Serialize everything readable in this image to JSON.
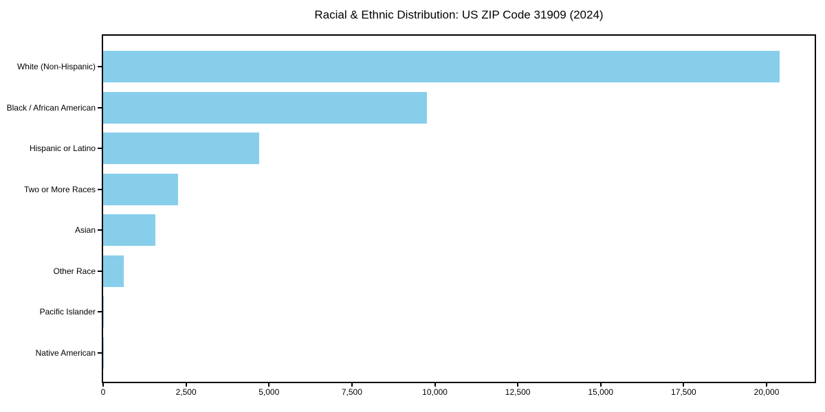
{
  "chart_data": {
    "type": "bar",
    "orientation": "horizontal",
    "title": "Racial & Ethnic Distribution: US ZIP Code 31909 (2024)",
    "categories": [
      "White (Non-Hispanic)",
      "Black / African American",
      "Hispanic or Latino",
      "Two or More Races",
      "Asian",
      "Other Race",
      "Pacific Islander",
      "Native American"
    ],
    "values": [
      20400,
      9770,
      4700,
      2250,
      1580,
      630,
      30,
      10
    ],
    "xlabel": "",
    "ylabel": "",
    "xlim": [
      0,
      21450
    ],
    "xticks": [
      0,
      2500,
      5000,
      7500,
      10000,
      12500,
      15000,
      17500,
      20000
    ],
    "xtick_labels": [
      "0",
      "2,500",
      "5,000",
      "7,500",
      "10,000",
      "12,500",
      "15,000",
      "17,500",
      "20,000"
    ],
    "bar_color": "#87CEEB",
    "axis_color": "#000000",
    "background_color": "#ffffff",
    "grid": false,
    "legend": null
  }
}
